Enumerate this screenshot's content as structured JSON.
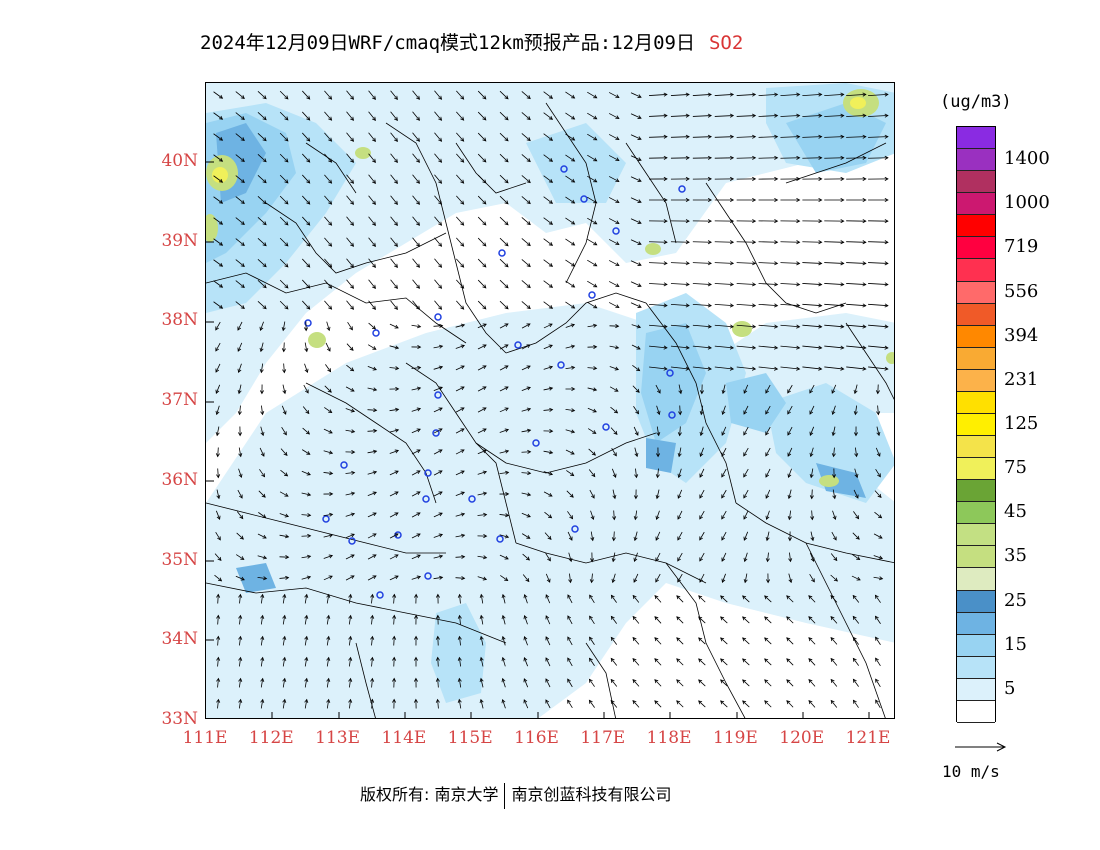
{
  "title": {
    "main": "2024年12月09日WRF/cmaq模式12km预报产品:12月09日",
    "pollutant": "SO2",
    "pollutant_color": "#d93434"
  },
  "map": {
    "lat_labels": [
      "40N",
      "39N",
      "38N",
      "37N",
      "36N",
      "35N",
      "34N",
      "33N"
    ],
    "lon_labels": [
      "111E",
      "112E",
      "113E",
      "114E",
      "115E",
      "116E",
      "117E",
      "118E",
      "119E",
      "120E",
      "121E"
    ],
    "lat_range": [
      33,
      41
    ],
    "lon_range": [
      111,
      121.4
    ],
    "label_color": "#d64545"
  },
  "legend": {
    "unit": "(ug/m3)",
    "levels": [
      {
        "label": "",
        "color": "#ffffff"
      },
      {
        "label": "5",
        "color": "#dcf1fb"
      },
      {
        "label": "",
        "color": "#b7e3f8"
      },
      {
        "label": "15",
        "color": "#98d3f2"
      },
      {
        "label": "",
        "color": "#6eb3e3"
      },
      {
        "label": "25",
        "color": "#4a90c8"
      },
      {
        "label": "",
        "color": "#deebc0"
      },
      {
        "label": "35",
        "color": "#c5df80"
      },
      {
        "label": "",
        "color": "#c3e083"
      },
      {
        "label": "45",
        "color": "#8dc85a"
      },
      {
        "label": "",
        "color": "#6aa435"
      },
      {
        "label": "75",
        "color": "#f0f05a"
      },
      {
        "label": "",
        "color": "#f4e34a"
      },
      {
        "label": "125",
        "color": "#ffef00"
      },
      {
        "label": "",
        "color": "#ffe000"
      },
      {
        "label": "231",
        "color": "#fcb24a"
      },
      {
        "label": "",
        "color": "#f9aa33"
      },
      {
        "label": "394",
        "color": "#ff8800"
      },
      {
        "label": "",
        "color": "#f05a28"
      },
      {
        "label": "556",
        "color": "#ff6a6a"
      },
      {
        "label": "",
        "color": "#ff3050"
      },
      {
        "label": "719",
        "color": "#ff0040"
      },
      {
        "label": "",
        "color": "#ff0000"
      },
      {
        "label": "1000",
        "color": "#cc1870"
      },
      {
        "label": "",
        "color": "#b03060"
      },
      {
        "label": "1400",
        "color": "#9a30c0"
      },
      {
        "label": "",
        "color": "#8a2be2"
      }
    ]
  },
  "wind_reference": {
    "label": "10 m/s"
  },
  "footer": {
    "left": "版权所有: 南京大学",
    "right": "南京创蓝科技有限公司"
  },
  "colors": {
    "city_marker": "#2040e0",
    "wind_arrow": "#000000"
  }
}
